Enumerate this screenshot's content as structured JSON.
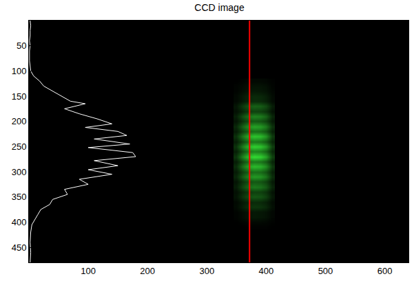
{
  "chart_data": {
    "type": "heatmap",
    "title": "CCD image",
    "xlim": [
      0,
      640
    ],
    "ylim": [
      480,
      0
    ],
    "xticks": [
      100,
      200,
      300,
      400,
      500,
      600
    ],
    "yticks": [
      50,
      100,
      150,
      200,
      250,
      300,
      350,
      400,
      450
    ],
    "grid": false,
    "color": "#33dd33",
    "heatmap": {
      "x": [
        350,
        360,
        370,
        380,
        390,
        400,
        410
      ],
      "y": [
        120,
        130,
        140,
        150,
        160,
        170,
        180,
        190,
        200,
        210,
        220,
        230,
        240,
        250,
        260,
        270,
        280,
        290,
        300,
        310,
        320,
        330,
        340,
        350,
        360,
        370,
        380,
        390,
        400,
        410
      ],
      "cells": [
        [
          0.01,
          0.03,
          0.05,
          0.05,
          0.05,
          0.04,
          0.02
        ],
        [
          0.03,
          0.06,
          0.09,
          0.1,
          0.1,
          0.08,
          0.03
        ],
        [
          0.03,
          0.07,
          0.11,
          0.12,
          0.11,
          0.09,
          0.04
        ],
        [
          0.05,
          0.12,
          0.18,
          0.2,
          0.19,
          0.15,
          0.06
        ],
        [
          0.05,
          0.12,
          0.18,
          0.2,
          0.19,
          0.15,
          0.06
        ],
        [
          0.11,
          0.27,
          0.41,
          0.45,
          0.43,
          0.34,
          0.14
        ],
        [
          0.08,
          0.18,
          0.27,
          0.3,
          0.29,
          0.23,
          0.09
        ],
        [
          0.15,
          0.36,
          0.54,
          0.6,
          0.57,
          0.45,
          0.18
        ],
        [
          0.1,
          0.24,
          0.36,
          0.4,
          0.38,
          0.3,
          0.12
        ],
        [
          0.19,
          0.45,
          0.68,
          0.75,
          0.71,
          0.56,
          0.23
        ],
        [
          0.13,
          0.3,
          0.45,
          0.5,
          0.48,
          0.38,
          0.15
        ],
        [
          0.23,
          0.54,
          0.81,
          0.9,
          0.86,
          0.68,
          0.27
        ],
        [
          0.14,
          0.33,
          0.5,
          0.55,
          0.52,
          0.41,
          0.17
        ],
        [
          0.24,
          0.57,
          0.86,
          0.95,
          0.9,
          0.71,
          0.29
        ],
        [
          0.15,
          0.36,
          0.54,
          0.6,
          0.57,
          0.45,
          0.18
        ],
        [
          0.25,
          0.6,
          0.9,
          1,
          0.95,
          0.75,
          0.3
        ],
        [
          0.14,
          0.33,
          0.5,
          0.55,
          0.52,
          0.41,
          0.17
        ],
        [
          0.21,
          0.51,
          0.77,
          0.85,
          0.81,
          0.64,
          0.26
        ],
        [
          0.13,
          0.3,
          0.45,
          0.5,
          0.48,
          0.38,
          0.15
        ],
        [
          0.18,
          0.42,
          0.63,
          0.7,
          0.67,
          0.53,
          0.21
        ],
        [
          0.1,
          0.24,
          0.36,
          0.4,
          0.38,
          0.3,
          0.12
        ],
        [
          0.14,
          0.33,
          0.5,
          0.55,
          0.52,
          0.41,
          0.17
        ],
        [
          0.08,
          0.18,
          0.27,
          0.3,
          0.29,
          0.23,
          0.09
        ],
        [
          0.1,
          0.24,
          0.36,
          0.4,
          0.38,
          0.3,
          0.12
        ],
        [
          0.05,
          0.12,
          0.18,
          0.2,
          0.19,
          0.15,
          0.06
        ],
        [
          0.06,
          0.15,
          0.23,
          0.25,
          0.24,
          0.19,
          0.08
        ],
        [
          0.03,
          0.07,
          0.11,
          0.12,
          0.11,
          0.09,
          0.04
        ],
        [
          0.03,
          0.07,
          0.11,
          0.12,
          0.11,
          0.09,
          0.04
        ],
        [
          0.01,
          0.03,
          0.05,
          0.05,
          0.05,
          0.04,
          0.02
        ],
        [
          0.01,
          0.01,
          0.02,
          0.02,
          0.02,
          0.02,
          0.01
        ]
      ]
    },
    "series": [
      {
        "type": "line",
        "color": "#ffffff",
        "x": [
          2,
          3,
          2,
          2,
          1,
          2,
          1,
          1,
          1,
          2,
          3,
          8,
          18,
          25,
          40,
          55,
          70,
          95,
          60,
          85,
          115,
          140,
          95,
          150,
          165,
          110,
          170,
          100,
          175,
          180,
          110,
          150,
          100,
          140,
          85,
          100,
          60,
          65,
          40,
          35,
          20,
          15,
          10,
          5,
          3,
          2,
          3,
          2
        ],
        "y": [
          0,
          10,
          20,
          30,
          40,
          50,
          60,
          70,
          80,
          90,
          100,
          110,
          120,
          130,
          140,
          150,
          160,
          165,
          175,
          185,
          195,
          205,
          212,
          220,
          228,
          235,
          245,
          252,
          262,
          270,
          278,
          288,
          296,
          305,
          315,
          325,
          335,
          345,
          355,
          365,
          375,
          385,
          395,
          405,
          420,
          440,
          460,
          480
        ]
      },
      {
        "type": "line",
        "color": "#ff0000",
        "x": [
          372,
          372
        ],
        "y": [
          0,
          480
        ]
      }
    ]
  }
}
